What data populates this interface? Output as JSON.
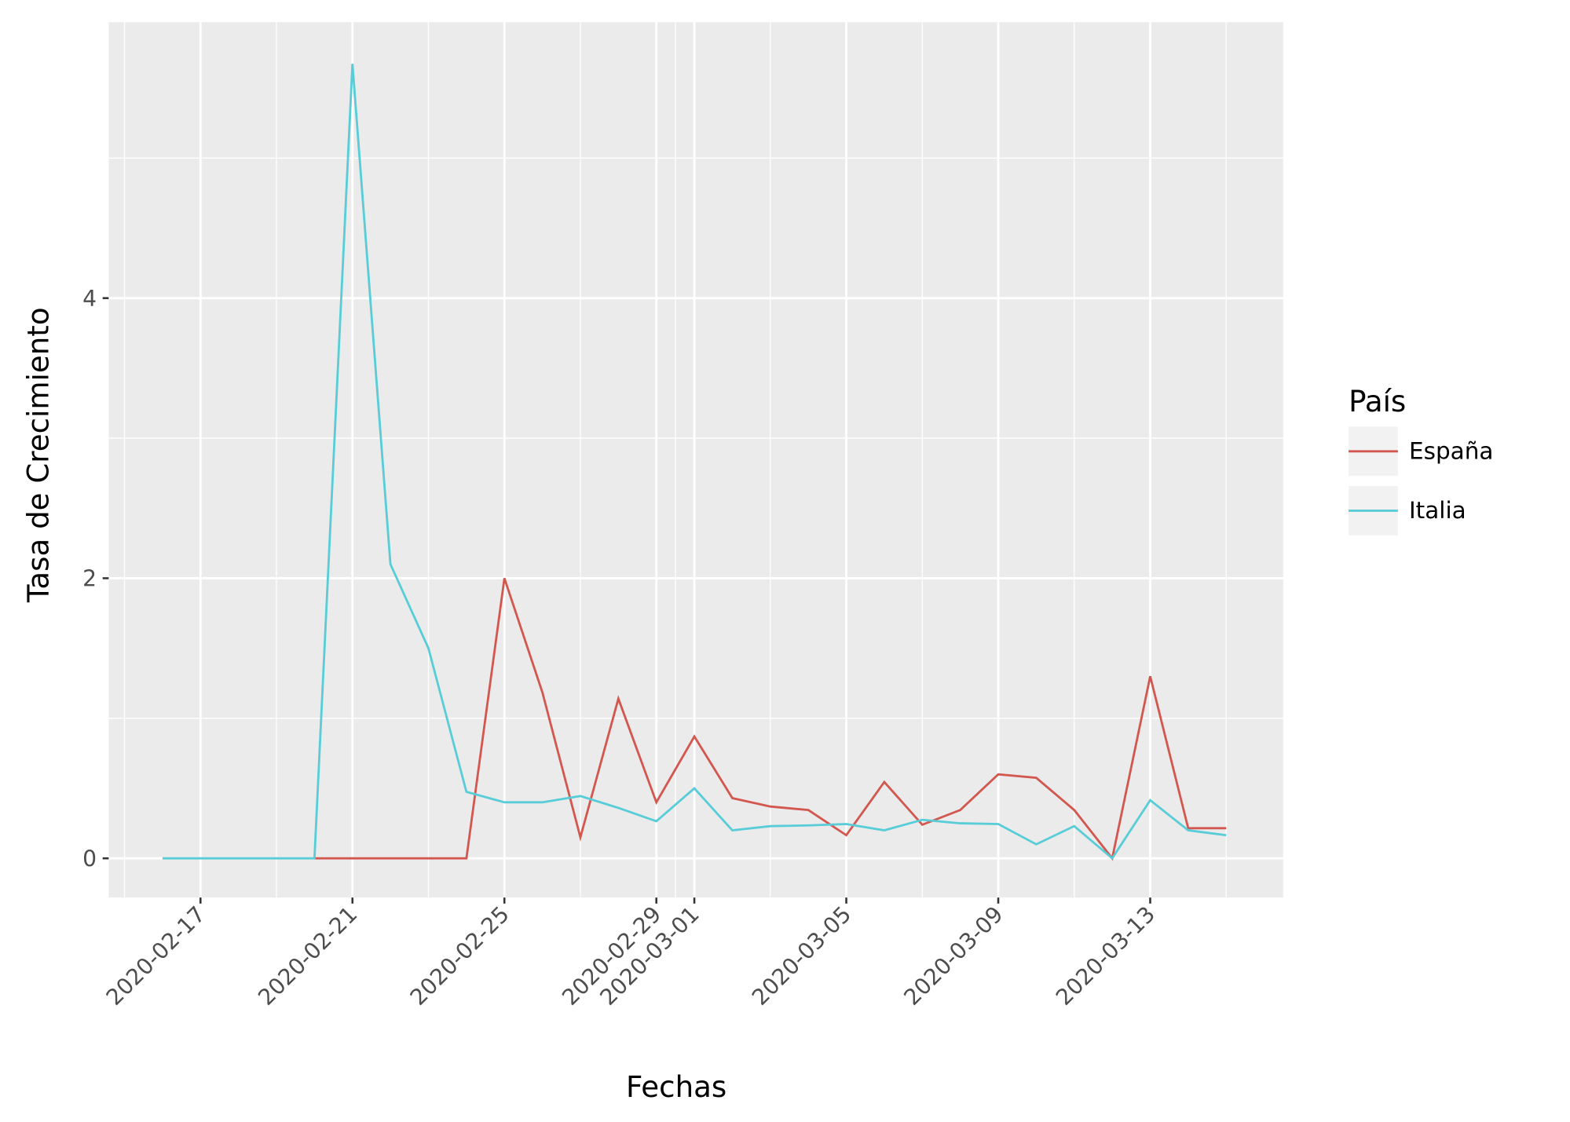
{
  "chart_data": {
    "type": "line",
    "x_label": "Fechas",
    "y_label": "Tasa de Crecimiento",
    "legend_title": "País",
    "x": [
      "2020-02-16",
      "2020-02-17",
      "2020-02-18",
      "2020-02-19",
      "2020-02-20",
      "2020-02-21",
      "2020-02-22",
      "2020-02-23",
      "2020-02-24",
      "2020-02-25",
      "2020-02-26",
      "2020-02-27",
      "2020-02-28",
      "2020-02-29",
      "2020-03-01",
      "2020-03-02",
      "2020-03-03",
      "2020-03-04",
      "2020-03-05",
      "2020-03-06",
      "2020-03-07",
      "2020-03-08",
      "2020-03-09",
      "2020-03-10",
      "2020-03-11",
      "2020-03-12",
      "2020-03-13",
      "2020-03-14",
      "2020-03-15"
    ],
    "series": [
      {
        "name": "España",
        "color": "#d2574f",
        "values": [
          null,
          null,
          null,
          null,
          0,
          0,
          0,
          0,
          0,
          2.0,
          1.185,
          0.15,
          1.14,
          0.4,
          0.87,
          0.43,
          0.37,
          0.345,
          0.165,
          0.545,
          0.24,
          0.345,
          0.6,
          0.575,
          0.345,
          0,
          1.3,
          0.215,
          0.215
        ]
      },
      {
        "name": "Italia",
        "color": "#58cdd8",
        "values": [
          0,
          0,
          0,
          0,
          0,
          5.673,
          2.1,
          1.5,
          0.475,
          0.4,
          0.4,
          0.445,
          0.36,
          0.265,
          0.5,
          0.2,
          0.23,
          0.235,
          0.245,
          0.2,
          0.275,
          0.25,
          0.245,
          0.1,
          0.23,
          0,
          0.415,
          0.2,
          0.165
        ]
      }
    ],
    "xlim": [
      "2020-02-14T14:00",
      "2020-03-16T12:00"
    ],
    "xticks": [
      "2020-02-17",
      "2020-02-21",
      "2020-02-25",
      "2020-02-29",
      "2020-03-01",
      "2020-03-05",
      "2020-03-09",
      "2020-03-13"
    ],
    "ylim": [
      -0.28,
      5.97
    ],
    "yticks": [
      0,
      2,
      4
    ],
    "grid": true,
    "legend": "right"
  }
}
